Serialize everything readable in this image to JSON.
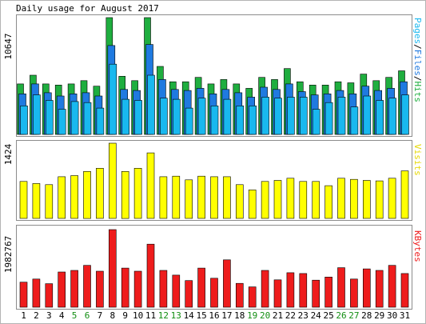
{
  "title": "Daily usage for August 2017",
  "colors": {
    "hits": "#1fae3f",
    "files": "#1f7ae0",
    "pages": "#19b8ef",
    "visits": "#ffff00",
    "kbytes": "#ee1c1c",
    "weekend_label": "#118e11",
    "weekday_label": "#000000"
  },
  "chart_data": [
    {
      "type": "bar",
      "panel": "hits-files-pages",
      "ylabel": "10647",
      "ymax": 10647,
      "right_label_parts": [
        "Pages",
        "/",
        "Files",
        "/",
        "Hits"
      ],
      "categories": [
        "1",
        "2",
        "3",
        "4",
        "5",
        "6",
        "7",
        "8",
        "9",
        "10",
        "11",
        "12",
        "13",
        "14",
        "15",
        "16",
        "17",
        "18",
        "19",
        "20",
        "21",
        "22",
        "23",
        "24",
        "25",
        "26",
        "27",
        "28",
        "29",
        "30",
        "31"
      ],
      "weekend_days": [
        "5",
        "6",
        "12",
        "13",
        "19",
        "20",
        "26",
        "27"
      ],
      "series": [
        {
          "name": "Hits",
          "values": [
            4600,
            5400,
            4600,
            4500,
            4600,
            4900,
            4400,
            10647,
            5300,
            4900,
            10647,
            6200,
            4800,
            4800,
            5200,
            4600,
            5000,
            4600,
            4200,
            5200,
            5000,
            6000,
            4800,
            4500,
            4500,
            4800,
            4700,
            5500,
            4900,
            5200,
            5800
          ]
        },
        {
          "name": "Files",
          "values": [
            3700,
            4600,
            3800,
            3500,
            3700,
            3800,
            3500,
            8100,
            4100,
            4000,
            8200,
            5000,
            4100,
            4000,
            4200,
            3700,
            4100,
            3800,
            3400,
            4300,
            4100,
            4600,
            3900,
            3600,
            3700,
            4000,
            3700,
            4400,
            4000,
            4200,
            4800
          ]
        },
        {
          "name": "Pages",
          "values": [
            2600,
            3600,
            3100,
            2300,
            3000,
            2900,
            2400,
            6400,
            3200,
            3100,
            5400,
            3300,
            3200,
            2400,
            3300,
            2600,
            3200,
            2600,
            2600,
            3400,
            3300,
            3400,
            3400,
            2300,
            2900,
            3400,
            2500,
            3500,
            3100,
            3300,
            3600
          ]
        }
      ]
    },
    {
      "type": "bar",
      "panel": "visits",
      "ylabel": "1424",
      "ymax": 1424,
      "right_label": "Visits",
      "categories": [
        "1",
        "2",
        "3",
        "4",
        "5",
        "6",
        "7",
        "8",
        "9",
        "10",
        "11",
        "12",
        "13",
        "14",
        "15",
        "16",
        "17",
        "18",
        "19",
        "20",
        "21",
        "22",
        "23",
        "24",
        "25",
        "26",
        "27",
        "28",
        "29",
        "30",
        "31"
      ],
      "series": [
        {
          "name": "Visits",
          "values": [
            700,
            660,
            640,
            790,
            810,
            890,
            950,
            1424,
            890,
            950,
            1240,
            790,
            800,
            730,
            800,
            790,
            790,
            640,
            540,
            700,
            720,
            760,
            700,
            700,
            620,
            760,
            740,
            720,
            710,
            760,
            900
          ]
        }
      ]
    },
    {
      "type": "bar",
      "panel": "kbytes",
      "ylabel": "1982767",
      "ymax": 1982767,
      "right_label": "KBytes",
      "categories": [
        "1",
        "2",
        "3",
        "4",
        "5",
        "6",
        "7",
        "8",
        "9",
        "10",
        "11",
        "12",
        "13",
        "14",
        "15",
        "16",
        "17",
        "18",
        "19",
        "20",
        "21",
        "22",
        "23",
        "24",
        "25",
        "26",
        "27",
        "28",
        "29",
        "30",
        "31"
      ],
      "series": [
        {
          "name": "KBytes",
          "values": [
            640000,
            720000,
            600000,
            900000,
            940000,
            1070000,
            920000,
            1982767,
            1000000,
            920000,
            1610000,
            940000,
            820000,
            680000,
            1000000,
            740000,
            1210000,
            610000,
            520000,
            940000,
            700000,
            880000,
            860000,
            690000,
            770000,
            1010000,
            720000,
            980000,
            940000,
            1070000,
            860000
          ]
        }
      ]
    }
  ]
}
